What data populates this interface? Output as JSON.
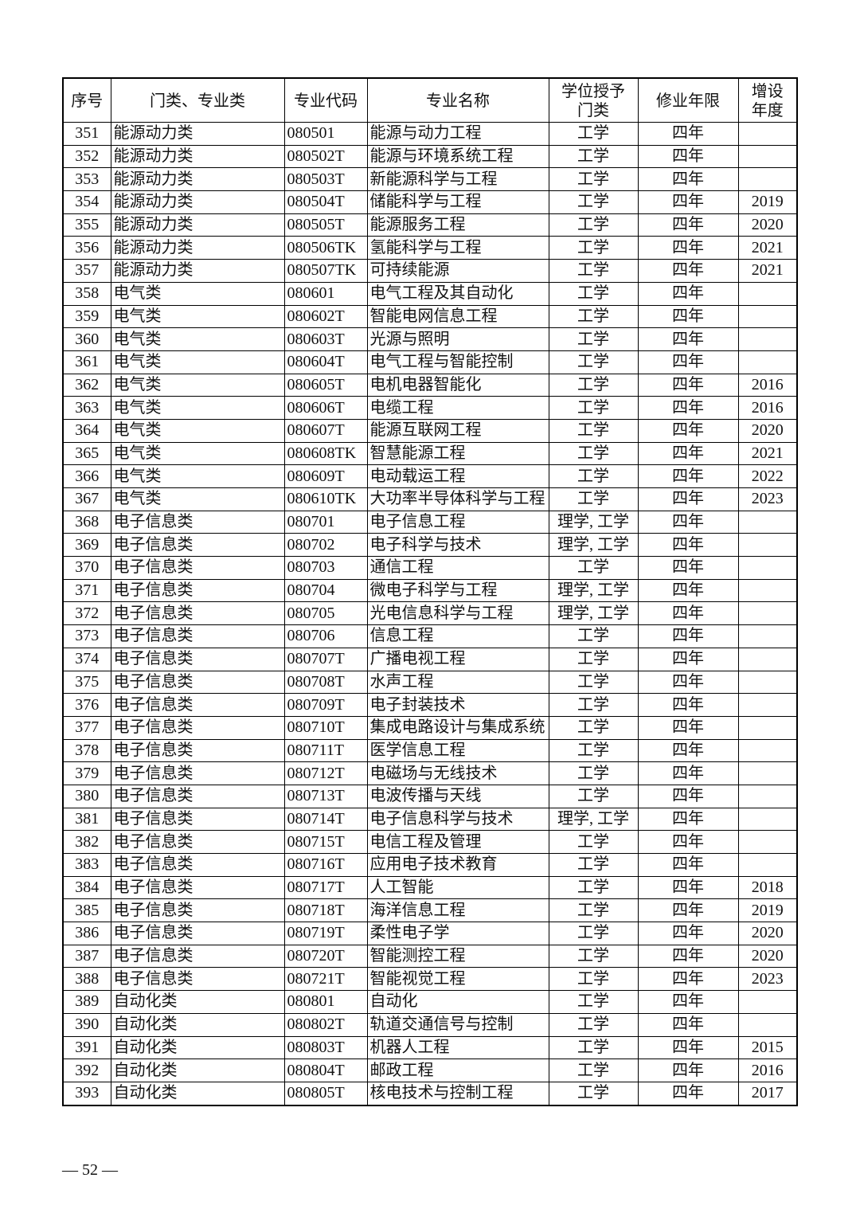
{
  "table": {
    "headers": [
      "序号",
      "门类、专业类",
      "专业代码",
      "专业名称",
      "学位授予\n门类",
      "修业年限",
      "增设\n年度"
    ],
    "rows": [
      [
        "351",
        "能源动力类",
        "080501",
        "能源与动力工程",
        "工学",
        "四年",
        ""
      ],
      [
        "352",
        "能源动力类",
        "080502T",
        "能源与环境系统工程",
        "工学",
        "四年",
        ""
      ],
      [
        "353",
        "能源动力类",
        "080503T",
        "新能源科学与工程",
        "工学",
        "四年",
        ""
      ],
      [
        "354",
        "能源动力类",
        "080504T",
        "储能科学与工程",
        "工学",
        "四年",
        "2019"
      ],
      [
        "355",
        "能源动力类",
        "080505T",
        "能源服务工程",
        "工学",
        "四年",
        "2020"
      ],
      [
        "356",
        "能源动力类",
        "080506TK",
        "氢能科学与工程",
        "工学",
        "四年",
        "2021"
      ],
      [
        "357",
        "能源动力类",
        "080507TK",
        "可持续能源",
        "工学",
        "四年",
        "2021"
      ],
      [
        "358",
        "电气类",
        "080601",
        "电气工程及其自动化",
        "工学",
        "四年",
        ""
      ],
      [
        "359",
        "电气类",
        "080602T",
        "智能电网信息工程",
        "工学",
        "四年",
        ""
      ],
      [
        "360",
        "电气类",
        "080603T",
        "光源与照明",
        "工学",
        "四年",
        ""
      ],
      [
        "361",
        "电气类",
        "080604T",
        "电气工程与智能控制",
        "工学",
        "四年",
        ""
      ],
      [
        "362",
        "电气类",
        "080605T",
        "电机电器智能化",
        "工学",
        "四年",
        "2016"
      ],
      [
        "363",
        "电气类",
        "080606T",
        "电缆工程",
        "工学",
        "四年",
        "2016"
      ],
      [
        "364",
        "电气类",
        "080607T",
        "能源互联网工程",
        "工学",
        "四年",
        "2020"
      ],
      [
        "365",
        "电气类",
        "080608TK",
        "智慧能源工程",
        "工学",
        "四年",
        "2021"
      ],
      [
        "366",
        "电气类",
        "080609T",
        "电动载运工程",
        "工学",
        "四年",
        "2022"
      ],
      [
        "367",
        "电气类",
        "080610TK",
        "大功率半导体科学与工程",
        "工学",
        "四年",
        "2023"
      ],
      [
        "368",
        "电子信息类",
        "080701",
        "电子信息工程",
        "理学, 工学",
        "四年",
        ""
      ],
      [
        "369",
        "电子信息类",
        "080702",
        "电子科学与技术",
        "理学, 工学",
        "四年",
        ""
      ],
      [
        "370",
        "电子信息类",
        "080703",
        "通信工程",
        "工学",
        "四年",
        ""
      ],
      [
        "371",
        "电子信息类",
        "080704",
        "微电子科学与工程",
        "理学, 工学",
        "四年",
        ""
      ],
      [
        "372",
        "电子信息类",
        "080705",
        "光电信息科学与工程",
        "理学, 工学",
        "四年",
        ""
      ],
      [
        "373",
        "电子信息类",
        "080706",
        "信息工程",
        "工学",
        "四年",
        ""
      ],
      [
        "374",
        "电子信息类",
        "080707T",
        "广播电视工程",
        "工学",
        "四年",
        ""
      ],
      [
        "375",
        "电子信息类",
        "080708T",
        "水声工程",
        "工学",
        "四年",
        ""
      ],
      [
        "376",
        "电子信息类",
        "080709T",
        "电子封装技术",
        "工学",
        "四年",
        ""
      ],
      [
        "377",
        "电子信息类",
        "080710T",
        "集成电路设计与集成系统",
        "工学",
        "四年",
        ""
      ],
      [
        "378",
        "电子信息类",
        "080711T",
        "医学信息工程",
        "工学",
        "四年",
        ""
      ],
      [
        "379",
        "电子信息类",
        "080712T",
        "电磁场与无线技术",
        "工学",
        "四年",
        ""
      ],
      [
        "380",
        "电子信息类",
        "080713T",
        "电波传播与天线",
        "工学",
        "四年",
        ""
      ],
      [
        "381",
        "电子信息类",
        "080714T",
        "电子信息科学与技术",
        "理学, 工学",
        "四年",
        ""
      ],
      [
        "382",
        "电子信息类",
        "080715T",
        "电信工程及管理",
        "工学",
        "四年",
        ""
      ],
      [
        "383",
        "电子信息类",
        "080716T",
        "应用电子技术教育",
        "工学",
        "四年",
        ""
      ],
      [
        "384",
        "电子信息类",
        "080717T",
        "人工智能",
        "工学",
        "四年",
        "2018"
      ],
      [
        "385",
        "电子信息类",
        "080718T",
        "海洋信息工程",
        "工学",
        "四年",
        "2019"
      ],
      [
        "386",
        "电子信息类",
        "080719T",
        "柔性电子学",
        "工学",
        "四年",
        "2020"
      ],
      [
        "387",
        "电子信息类",
        "080720T",
        "智能测控工程",
        "工学",
        "四年",
        "2020"
      ],
      [
        "388",
        "电子信息类",
        "080721T",
        "智能视觉工程",
        "工学",
        "四年",
        "2023"
      ],
      [
        "389",
        "自动化类",
        "080801",
        "自动化",
        "工学",
        "四年",
        ""
      ],
      [
        "390",
        "自动化类",
        "080802T",
        "轨道交通信号与控制",
        "工学",
        "四年",
        ""
      ],
      [
        "391",
        "自动化类",
        "080803T",
        "机器人工程",
        "工学",
        "四年",
        "2015"
      ],
      [
        "392",
        "自动化类",
        "080804T",
        "邮政工程",
        "工学",
        "四年",
        "2016"
      ],
      [
        "393",
        "自动化类",
        "080805T",
        "核电技术与控制工程",
        "工学",
        "四年",
        "2017"
      ]
    ]
  },
  "footer": {
    "page_number": "— 52 —"
  }
}
